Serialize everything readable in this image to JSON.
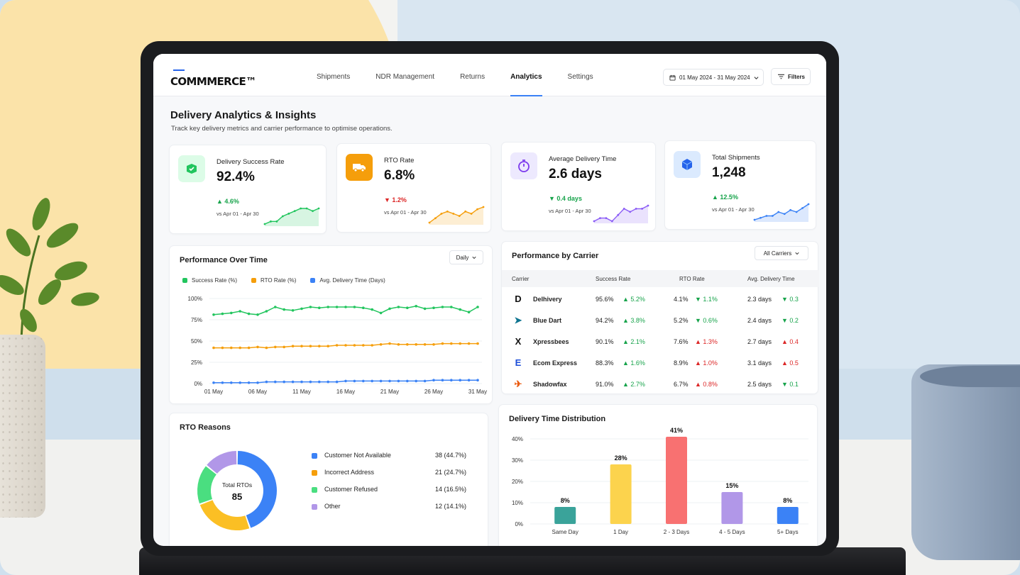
{
  "header": {
    "logo": "COMMMERCE™",
    "nav": [
      "Shipments",
      "NDR Management",
      "Returns",
      "Analytics",
      "Settings"
    ],
    "active_nav": "Analytics",
    "date_range": "01 May 2024 - 31 May 2024",
    "filters_label": "Filters"
  },
  "page": {
    "title": "Delivery Analytics & Insights",
    "subtitle": "Track key delivery metrics and carrier performance to optimise operations."
  },
  "kpis": [
    {
      "label": "Delivery Success Rate",
      "value": "92.4%",
      "delta": "4.6%",
      "direction": "up",
      "vs": "vs Apr 01 - Apr 30",
      "icon": "package-check-icon",
      "icon_bg": "#dcfce7",
      "accent": "#22c55e",
      "spark": [
        2,
        3,
        3,
        5,
        6,
        7,
        8,
        8,
        7,
        8
      ]
    },
    {
      "label": "RTO Rate",
      "value": "6.8%",
      "delta": "1.2%",
      "direction": "down",
      "vs": "vs Apr 01 - Apr 30",
      "icon": "truck-icon",
      "icon_bg": "#f59e0b",
      "accent": "#f59e0b",
      "spark": [
        1,
        3,
        5,
        6,
        5,
        4,
        6,
        5,
        7,
        8
      ]
    },
    {
      "label": "Average Delivery Time",
      "value": "2.6 days",
      "delta": "0.4 days",
      "direction": "up",
      "vs": "vs Apr 01 - Apr 30",
      "icon": "stopwatch-icon",
      "icon_bg": "#ede9fe",
      "accent": "#8b5cf6",
      "spark": [
        2,
        3,
        3,
        2,
        4,
        6,
        5,
        6,
        6,
        7
      ]
    },
    {
      "label": "Total Shipments",
      "value": "1,248",
      "delta": "12.5%",
      "direction": "up",
      "vs": "vs Apr 01 - Apr 30",
      "icon": "box-icon",
      "icon_bg": "#dbeafe",
      "accent": "#3b82f6",
      "spark": [
        1,
        2,
        3,
        3,
        5,
        4,
        6,
        5,
        7,
        9
      ]
    }
  ],
  "performance": {
    "title": "Performance Over Time",
    "period": "Daily",
    "legend": [
      "Success Rate (%)",
      "RTO Rate (%)",
      "Avg. Delivery Time (Days)"
    ],
    "y_ticks": [
      "100%",
      "75%",
      "50%",
      "25%",
      "0%"
    ],
    "x_ticks": [
      "01 May",
      "06 May",
      "11 May",
      "16 May",
      "21 May",
      "26 May",
      "31 May"
    ]
  },
  "chart_data": [
    {
      "type": "line",
      "title": "Performance Over Time",
      "x": [
        "01 May",
        "02 May",
        "03 May",
        "04 May",
        "05 May",
        "06 May",
        "07 May",
        "08 May",
        "09 May",
        "10 May",
        "11 May",
        "12 May",
        "13 May",
        "14 May",
        "15 May",
        "16 May",
        "17 May",
        "18 May",
        "19 May",
        "20 May",
        "21 May",
        "22 May",
        "23 May",
        "24 May",
        "25 May",
        "26 May",
        "27 May",
        "28 May",
        "29 May",
        "30 May",
        "31 May"
      ],
      "ylim": [
        0,
        100
      ],
      "series": [
        {
          "name": "Success Rate (%)",
          "color": "#22c55e",
          "values": [
            81,
            82,
            83,
            85,
            82,
            81,
            85,
            90,
            87,
            86,
            88,
            90,
            89,
            90,
            90,
            90,
            90,
            89,
            87,
            83,
            88,
            90,
            89,
            91,
            88,
            89,
            90,
            90,
            87,
            84,
            90
          ]
        },
        {
          "name": "RTO Rate (%)",
          "color": "#f59e0b",
          "values": [
            42,
            42,
            42,
            42,
            42,
            43,
            42,
            43,
            43,
            44,
            44,
            44,
            44,
            44,
            45,
            45,
            45,
            45,
            45,
            46,
            47,
            46,
            46,
            46,
            46,
            46,
            47,
            47,
            47,
            47,
            47
          ]
        },
        {
          "name": "Avg. Delivery Time (Days)",
          "color": "#3b82f6",
          "values": [
            1,
            1,
            1,
            1,
            1,
            1,
            2,
            2,
            2,
            2,
            2,
            2,
            2,
            2,
            2,
            3,
            3,
            3,
            3,
            3,
            3,
            3,
            3,
            3,
            3,
            4,
            4,
            4,
            4,
            4,
            4
          ]
        }
      ]
    },
    {
      "type": "pie",
      "title": "RTO Reasons",
      "categories": [
        "Customer Not Available",
        "Incorrect Address",
        "Customer Refused",
        "Other"
      ],
      "values": [
        38,
        21,
        14,
        12
      ],
      "colors": [
        "#3b82f6",
        "#fbbf24",
        "#4ade80",
        "#b197e8"
      ]
    },
    {
      "type": "bar",
      "title": "Delivery Time Distribution",
      "categories": [
        "Same Day",
        "1 Day",
        "2 - 3 Days",
        "4 - 5 Days",
        "5+ Days"
      ],
      "values": [
        8,
        28,
        41,
        15,
        8
      ],
      "colors": [
        "#3aa39a",
        "#fcd34d",
        "#f87171",
        "#b197e8",
        "#3b82f6"
      ],
      "ylim": [
        0,
        40
      ]
    }
  ],
  "carriers": {
    "title": "Performance by Carrier",
    "filter": "All Carriers",
    "columns": [
      "Carrier",
      "Success Rate",
      "RTO Rate",
      "Avg. Delivery Time"
    ],
    "rows": [
      {
        "name": "Delhivery",
        "logo": "D",
        "logo_color": "#111",
        "success": "95.6%",
        "success_delta": "5.2%",
        "success_dir": "up",
        "rto": "4.1%",
        "rto_delta": "1.1%",
        "rto_dir": "down",
        "time": "2.3 days",
        "time_delta": "0.3",
        "time_dir": "down"
      },
      {
        "name": "Blue Dart",
        "logo": "➤",
        "logo_color": "#0e7490",
        "success": "94.2%",
        "success_delta": "3.8%",
        "success_dir": "up",
        "rto": "5.2%",
        "rto_delta": "0.6%",
        "rto_dir": "down",
        "time": "2.4 days",
        "time_delta": "0.2",
        "time_dir": "down"
      },
      {
        "name": "Xpressbees",
        "logo": "X",
        "logo_color": "#111",
        "success": "90.1%",
        "success_delta": "2.1%",
        "success_dir": "up",
        "rto": "7.6%",
        "rto_delta": "1.3%",
        "rto_dir": "up-bad",
        "time": "2.7 days",
        "time_delta": "0.4",
        "time_dir": "up-bad"
      },
      {
        "name": "Ecom Express",
        "logo": "E",
        "logo_color": "#1d4ed8",
        "success": "88.3%",
        "success_delta": "1.6%",
        "success_dir": "up",
        "rto": "8.9%",
        "rto_delta": "1.0%",
        "rto_dir": "up-bad",
        "time": "3.1 days",
        "time_delta": "0.5",
        "time_dir": "up-bad"
      },
      {
        "name": "Shadowfax",
        "logo": "✈",
        "logo_color": "#ea580c",
        "success": "91.0%",
        "success_delta": "2.7%",
        "success_dir": "up",
        "rto": "6.7%",
        "rto_delta": "0.8%",
        "rto_dir": "up-bad",
        "time": "2.5 days",
        "time_delta": "0.1",
        "time_dir": "down"
      }
    ]
  },
  "rto": {
    "title": "RTO Reasons",
    "center_label": "Total RTOs",
    "center_value": "85",
    "reasons": [
      {
        "label": "Customer Not Available",
        "value": "38 (44.7%)",
        "color": "#3b82f6"
      },
      {
        "label": "Incorrect Address",
        "value": "21 (24.7%)",
        "color": "#f59e0b"
      },
      {
        "label": "Customer Refused",
        "value": "14 (16.5%)",
        "color": "#4ade80"
      },
      {
        "label": "Other",
        "value": "12 (14.1%)",
        "color": "#b197e8"
      }
    ]
  },
  "distribution": {
    "title": "Delivery Time Distribution",
    "y_ticks": [
      "40%",
      "30%",
      "20%",
      "10%",
      "0%"
    ],
    "value_labels": [
      "8%",
      "28%",
      "41%",
      "15%",
      "8%"
    ]
  }
}
